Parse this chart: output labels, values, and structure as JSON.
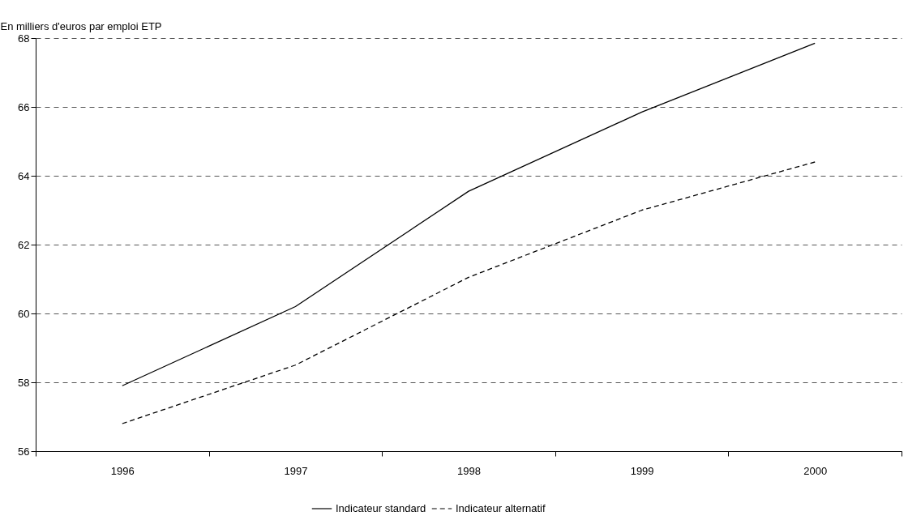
{
  "chart_data": {
    "type": "line",
    "ylabel": "En milliers d'euros par emploi ETP",
    "categories": [
      "1996",
      "1997",
      "1998",
      "1999",
      "2000"
    ],
    "series": [
      {
        "name": "Indicateur standard",
        "color": "#000000",
        "line_style": "solid",
        "values": [
          57.9,
          60.2,
          63.55,
          65.85,
          67.85
        ]
      },
      {
        "name": "Indicateur alternatif",
        "color": "#000000",
        "line_style": "dashed",
        "values": [
          56.8,
          58.5,
          61.05,
          63.0,
          64.4
        ]
      }
    ],
    "ylim": [
      56,
      68
    ],
    "yticks": [
      56,
      58,
      60,
      62,
      64,
      66,
      68
    ],
    "grid": "y",
    "legend": "bottom",
    "marker": "none"
  }
}
